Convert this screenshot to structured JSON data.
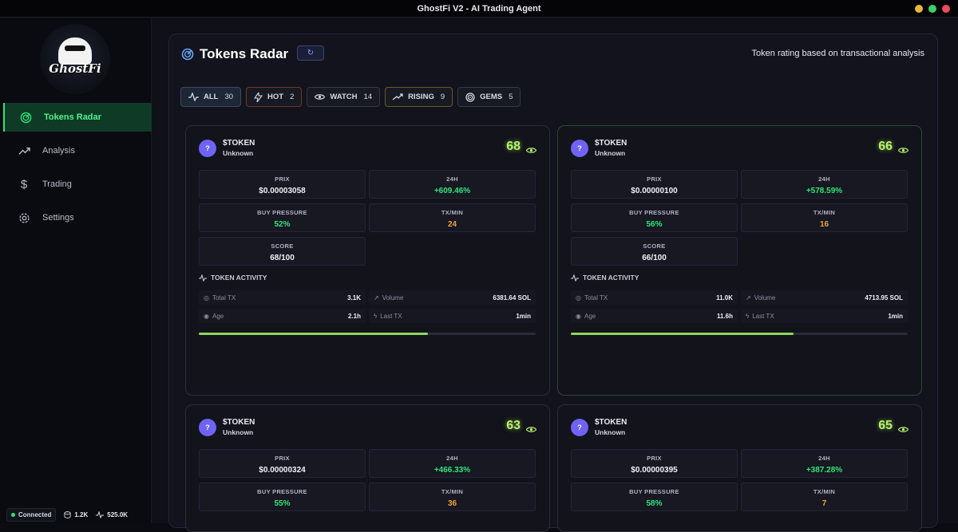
{
  "window": {
    "title": "GhostFi V2 - AI Trading Agent"
  },
  "colors": {
    "accent": "#2ee57a",
    "score": "#b8f06b",
    "avatar": "#6e63f2",
    "orange": "#f0a23a"
  },
  "sidebar": {
    "logo_text": "GhostFi",
    "items": [
      {
        "label": "Tokens Radar",
        "icon": "radar-icon",
        "active": true
      },
      {
        "label": "Analysis",
        "icon": "trending-up-icon",
        "active": false
      },
      {
        "label": "Trading",
        "icon": "dollar-icon",
        "active": false
      },
      {
        "label": "Settings",
        "icon": "gear-icon",
        "active": false
      }
    ]
  },
  "status": {
    "connection": "Connected",
    "db_count": "1.2K",
    "activity": "525.0K"
  },
  "header": {
    "title": "Tokens Radar",
    "refresh_label": "↻",
    "subtitle": "Token rating based on transactional analysis"
  },
  "filters": [
    {
      "label": "ALL",
      "count": "30",
      "icon": "activity-icon"
    },
    {
      "label": "HOT",
      "count": "2",
      "icon": "lightning-icon"
    },
    {
      "label": "WATCH",
      "count": "14",
      "icon": "eye-icon"
    },
    {
      "label": "RISING",
      "count": "9",
      "icon": "trending-up-icon"
    },
    {
      "label": "GEMS",
      "count": "5",
      "icon": "target-icon"
    }
  ],
  "labels": {
    "price": "PRIX",
    "change": "24H",
    "buy_pressure": "BUY PRESSURE",
    "tx_min": "TX/MIN",
    "score": "SCORE",
    "activity": "TOKEN ACTIVITY",
    "total_tx": "Total TX",
    "volume": "Volume",
    "age": "Age",
    "last_tx": "Last TX"
  },
  "tokens": [
    {
      "avatar": "?",
      "symbol": "$TOKEN",
      "name": "Unknown",
      "score": "68",
      "price": "$0.00003058",
      "change": "+609.46%",
      "buy_pressure": "52%",
      "tx_min": "24",
      "score_text": "68/100",
      "total_tx": "3.1K",
      "volume": "6381.64 SOL",
      "age": "2.1h",
      "last_tx": "1min",
      "progress": 0.68
    },
    {
      "avatar": "?",
      "symbol": "$TOKEN",
      "name": "Unknown",
      "score": "66",
      "price": "$0.00000100",
      "change": "+578.59%",
      "buy_pressure": "56%",
      "tx_min": "16",
      "score_text": "66/100",
      "total_tx": "11.0K",
      "volume": "4713.95 SOL",
      "age": "11.6h",
      "last_tx": "1min",
      "progress": 0.66
    },
    {
      "avatar": "?",
      "symbol": "$TOKEN",
      "name": "Unknown",
      "score": "63",
      "price": "$0.00000324",
      "change": "+466.33%",
      "buy_pressure": "55%",
      "tx_min": "36"
    },
    {
      "avatar": "?",
      "symbol": "$TOKEN",
      "name": "Unknown",
      "score": "65",
      "price": "$0.00000395",
      "change": "+387.28%",
      "buy_pressure": "58%",
      "tx_min": "7"
    }
  ]
}
